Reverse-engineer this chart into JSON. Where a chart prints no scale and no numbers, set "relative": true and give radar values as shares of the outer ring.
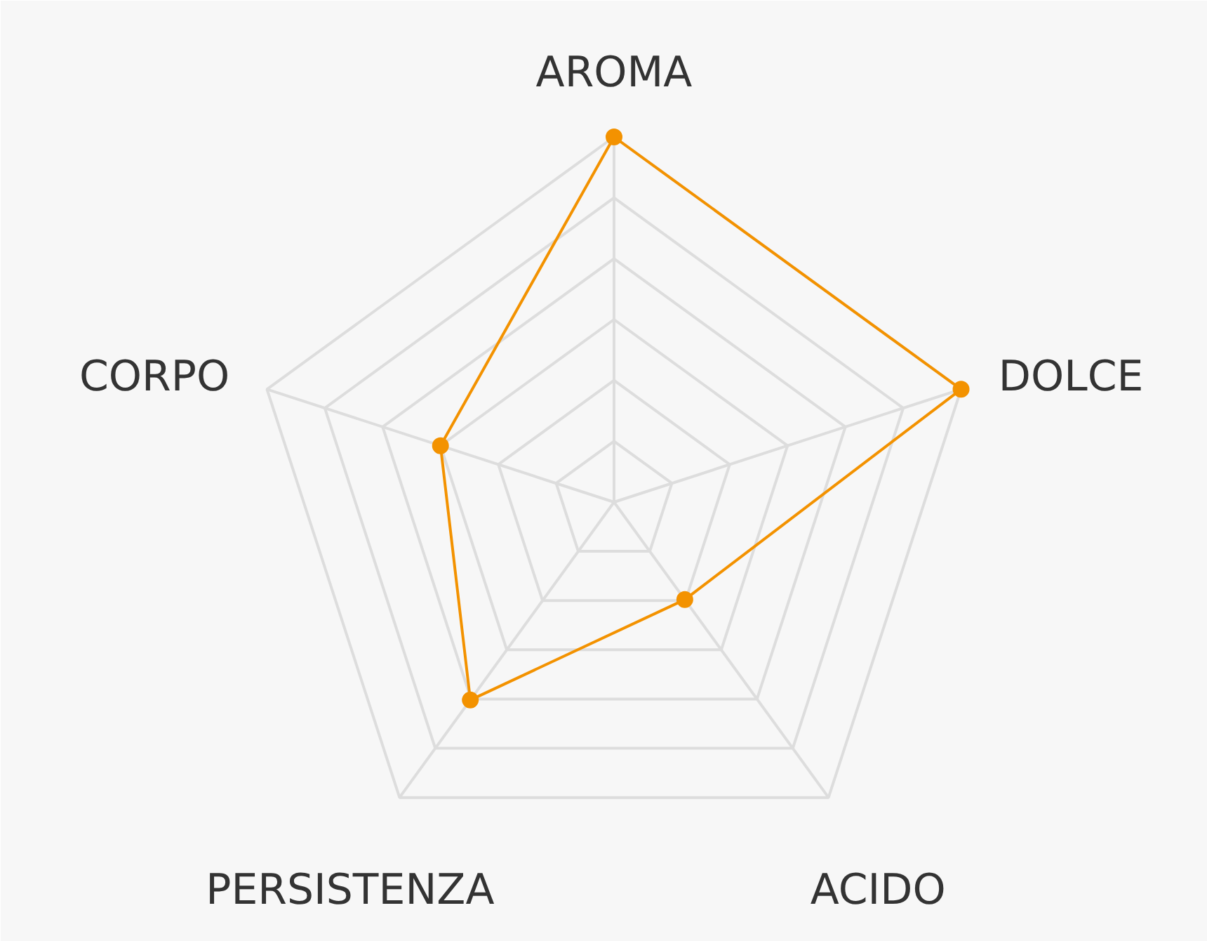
{
  "chart_data": {
    "type": "radar",
    "relative": true,
    "grid": true,
    "marker": "circle",
    "categories": [
      "AROMA",
      "DOLCE",
      "ACIDO",
      "PERSISTENZA",
      "CORPO"
    ],
    "series": [
      {
        "color": "#f39200",
        "values": [
          1,
          1,
          0.33,
          0.67,
          0.5
        ]
      }
    ]
  }
}
